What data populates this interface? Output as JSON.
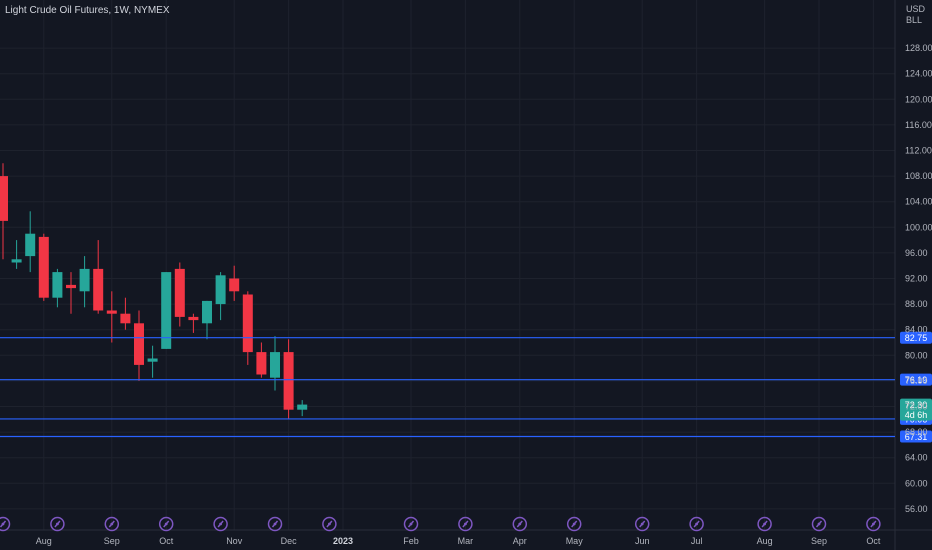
{
  "header": {
    "title": "Light Crude Oil Futures, 1W, NYMEX"
  },
  "price_axis": {
    "currency": "USD",
    "unit": "BLL"
  },
  "colors": {
    "background": "#131722",
    "up": "#26a69a",
    "down": "#f23645",
    "level_line": "#2962ff",
    "level_badge": "#2962ff",
    "last_price_badge": "#26a69a",
    "axis_text": "#b2b5be",
    "event_icon": "#7e57c2"
  },
  "chart_data": {
    "type": "candlestick",
    "title": "Light Crude Oil Futures, 1W, NYMEX",
    "timeframe": "1W",
    "exchange": "NYMEX",
    "ylim": [
      56,
      129
    ],
    "y_ticks": [
      "56.00",
      "60.00",
      "64.00",
      "68.00",
      "72.00",
      "76.00",
      "80.00",
      "84.00",
      "88.00",
      "92.00",
      "96.00",
      "100.00",
      "104.00",
      "108.00",
      "112.00",
      "116.00",
      "120.00",
      "124.00",
      "128.00"
    ],
    "x_labels": [
      {
        "label": "Aug",
        "week": 3.0
      },
      {
        "label": "Sep",
        "week": 8.0
      },
      {
        "label": "Oct",
        "week": 12.0
      },
      {
        "label": "Nov",
        "week": 17.0
      },
      {
        "label": "Dec",
        "week": 21.0
      },
      {
        "label": "2023",
        "week": 25.0,
        "bold": true
      },
      {
        "label": "Feb",
        "week": 30.0
      },
      {
        "label": "Mar",
        "week": 34.0
      },
      {
        "label": "Apr",
        "week": 38.0
      },
      {
        "label": "May",
        "week": 42.0
      },
      {
        "label": "Jun",
        "week": 47.0
      },
      {
        "label": "Jul",
        "week": 51.0
      },
      {
        "label": "Aug",
        "week": 56.0
      },
      {
        "label": "Sep",
        "week": 60.0
      },
      {
        "label": "Oct",
        "week": 64.0
      }
    ],
    "candles": [
      {
        "o": 108.0,
        "h": 110.0,
        "l": 95.0,
        "c": 101.0
      },
      {
        "o": 94.5,
        "h": 98.0,
        "l": 93.5,
        "c": 95.0
      },
      {
        "o": 95.5,
        "h": 102.5,
        "l": 93.0,
        "c": 99.0
      },
      {
        "o": 98.5,
        "h": 99.0,
        "l": 88.5,
        "c": 89.0
      },
      {
        "o": 89.0,
        "h": 93.5,
        "l": 87.5,
        "c": 93.0
      },
      {
        "o": 91.0,
        "h": 93.0,
        "l": 86.5,
        "c": 90.5
      },
      {
        "o": 90.0,
        "h": 95.5,
        "l": 87.5,
        "c": 93.5
      },
      {
        "o": 93.5,
        "h": 98.0,
        "l": 86.5,
        "c": 87.0
      },
      {
        "o": 87.0,
        "h": 90.0,
        "l": 82.0,
        "c": 86.5
      },
      {
        "o": 86.5,
        "h": 89.0,
        "l": 84.0,
        "c": 85.0
      },
      {
        "o": 85.0,
        "h": 87.0,
        "l": 76.0,
        "c": 78.5
      },
      {
        "o": 79.0,
        "h": 81.5,
        "l": 76.5,
        "c": 79.5
      },
      {
        "o": 81.0,
        "h": 93.0,
        "l": 81.0,
        "c": 93.0
      },
      {
        "o": 93.5,
        "h": 94.5,
        "l": 84.5,
        "c": 86.0
      },
      {
        "o": 86.0,
        "h": 86.5,
        "l": 83.5,
        "c": 85.5
      },
      {
        "o": 85.0,
        "h": 88.5,
        "l": 82.5,
        "c": 88.5
      },
      {
        "o": 88.0,
        "h": 93.0,
        "l": 85.5,
        "c": 92.5
      },
      {
        "o": 92.0,
        "h": 94.0,
        "l": 88.5,
        "c": 90.0
      },
      {
        "o": 89.5,
        "h": 90.0,
        "l": 78.5,
        "c": 80.5
      },
      {
        "o": 80.5,
        "h": 82.0,
        "l": 76.5,
        "c": 77.0
      },
      {
        "o": 76.5,
        "h": 83.0,
        "l": 74.5,
        "c": 80.5
      },
      {
        "o": 80.5,
        "h": 82.5,
        "l": 70.0,
        "c": 71.5
      },
      {
        "o": 71.5,
        "h": 73.0,
        "l": 70.5,
        "c": 72.3
      }
    ],
    "levels": [
      {
        "value": 82.75,
        "label": "82.75"
      },
      {
        "value": 76.19,
        "label": "76.19"
      },
      {
        "value": 70.06,
        "label": "70.06"
      },
      {
        "value": 67.31,
        "label": "67.31"
      }
    ],
    "last_price": {
      "value": 72.3,
      "label": "72.30",
      "countdown": "4d 6h"
    },
    "event_markers_weeks": [
      0,
      4,
      8,
      12,
      16,
      20,
      24,
      30,
      34,
      38,
      42,
      47,
      51,
      56,
      60,
      64
    ]
  }
}
